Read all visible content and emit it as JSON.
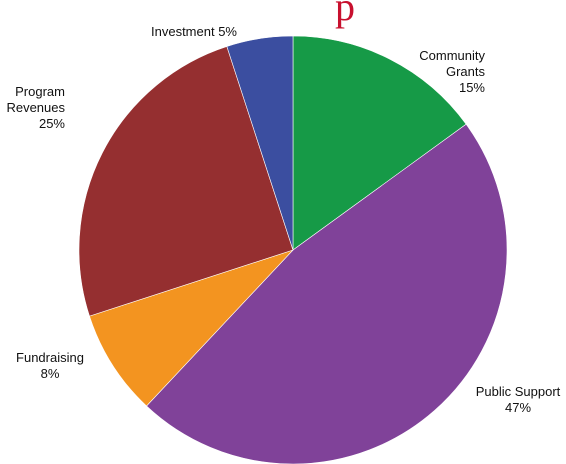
{
  "chart_data": {
    "type": "pie",
    "title_fragment": "p",
    "slices": [
      {
        "name_lines": [
          "Community",
          "Grants"
        ],
        "label": "Community Grants",
        "value": 15,
        "value_label": "15%",
        "color": "#169a47"
      },
      {
        "name_lines": [
          "Public Support"
        ],
        "label": "Public Support",
        "value": 47,
        "value_label": "47%",
        "color": "#804299"
      },
      {
        "name_lines": [
          "Fundraising"
        ],
        "label": "Fundraising",
        "value": 8,
        "value_label": "8%",
        "color": "#f39420"
      },
      {
        "name_lines": [
          "Program",
          "Revenues"
        ],
        "label": "Program Revenues",
        "value": 25,
        "value_label": "25%",
        "color": "#952f30"
      },
      {
        "name_lines": [
          "Investment"
        ],
        "label": "Investment",
        "value": 5,
        "value_label": "5%",
        "color": "#3b4ea0"
      }
    ],
    "start": "top, clockwise"
  }
}
